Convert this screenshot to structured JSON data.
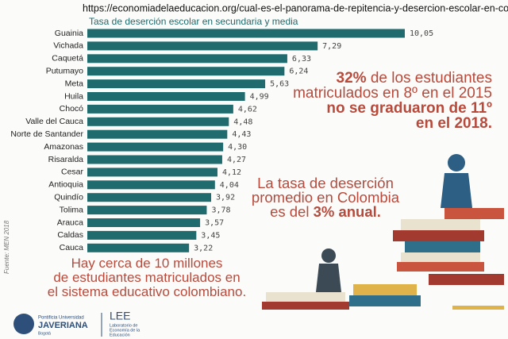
{
  "chart_data": {
    "type": "bar",
    "orientation": "horizontal",
    "source_url": "https://economiadelaeducacion.org/cual-es-el-panorama-de-repitencia-y-desercion-escolar-en-colombia/",
    "title": "Tasa de deserción escolar en secundaria y media",
    "color": "#1f6b6e",
    "categories": [
      "Guainia",
      "Vichada",
      "Caquetá",
      "Putumayo",
      "Meta",
      "Huila",
      "Chocó",
      "Valle del Cauca",
      "Norte de Santander",
      "Amazonas",
      "Risaralda",
      "Cesar",
      "Antioquia",
      "Quindío",
      "Tolima",
      "Arauca",
      "Caldas",
      "Cauca"
    ],
    "values": [
      10.05,
      7.29,
      6.33,
      6.24,
      5.63,
      4.99,
      4.62,
      4.48,
      4.43,
      4.3,
      4.27,
      4.12,
      4.04,
      3.92,
      3.78,
      3.57,
      3.45,
      3.22
    ],
    "value_labels": [
      "10,05",
      "7,29",
      "6,33",
      "6,24",
      "5,63",
      "4,99",
      "4,62",
      "4,48",
      "4,43",
      "4,30",
      "4,27",
      "4,12",
      "4,04",
      "3,92",
      "3,78",
      "3,57",
      "3,45",
      "3,22"
    ],
    "annotations": [
      {
        "lines": [
          [
            {
              "text": "32%",
              "bold": true
            },
            {
              "text": " de los estudiantes",
              "bold": false
            }
          ],
          [
            {
              "text": "matriculados en 8º en el 2015",
              "bold": false
            }
          ],
          [
            {
              "text": "no se graduaron de 11º",
              "bold": true
            }
          ],
          [
            {
              "text": "en el 2018.",
              "bold": true
            }
          ]
        ]
      },
      {
        "lines": [
          [
            {
              "text": "La tasa de deserción",
              "bold": false
            }
          ],
          [
            {
              "text": "promedio en Colombia",
              "bold": false
            }
          ],
          [
            {
              "text": "es del ",
              "bold": false
            },
            {
              "text": "3% anual.",
              "bold": true
            }
          ]
        ]
      },
      {
        "lines": [
          [
            {
              "text": "Hay cerca de 10 millones",
              "bold": false
            }
          ],
          [
            {
              "text": "de estudiantes matriculados en",
              "bold": false
            }
          ],
          [
            {
              "text": "el sistema educativo colombiano.",
              "bold": false
            }
          ]
        ]
      }
    ],
    "annotation_color": "#b84a3c",
    "source": "Fuente: MEN 2018",
    "logos": {
      "university": [
        "Pontificia Universidad",
        "JAVERIANA",
        "Bogotá"
      ],
      "lab": [
        "LEE",
        "Laboratorio de",
        "Economía de la",
        "Educación"
      ]
    }
  }
}
